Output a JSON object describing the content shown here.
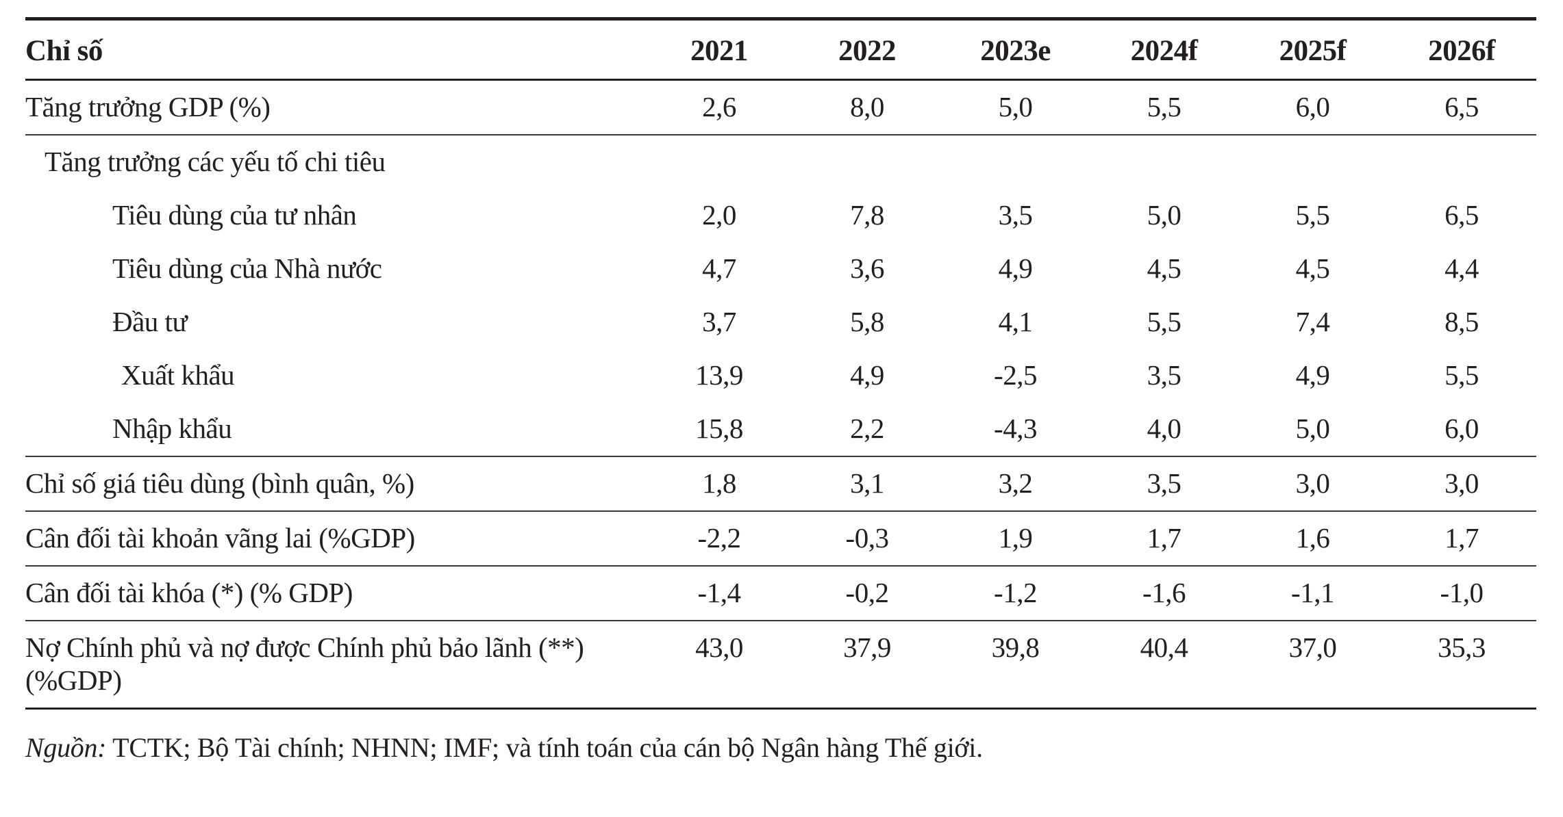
{
  "table": {
    "columns": [
      {
        "label": "Chỉ số"
      },
      {
        "label": "2021"
      },
      {
        "label": "2022"
      },
      {
        "label": "2023e"
      },
      {
        "label": "2024f"
      },
      {
        "label": "2025f"
      },
      {
        "label": "2026f"
      }
    ],
    "sections": [
      {
        "rows": [
          {
            "label": "Tăng trưởng GDP (%)",
            "indent": 0,
            "values": [
              "2,6",
              "8,0",
              "5,0",
              "5,5",
              "6,0",
              "6,5"
            ]
          }
        ]
      },
      {
        "rows": [
          {
            "label": "Tăng trưởng các yếu tố chi tiêu",
            "indent": 1,
            "values": [
              "",
              "",
              "",
              "",
              "",
              ""
            ]
          },
          {
            "label": "Tiêu dùng của tư nhân",
            "indent": 2,
            "values": [
              "2,0",
              "7,8",
              "3,5",
              "5,0",
              "5,5",
              "6,5"
            ]
          },
          {
            "label": "Tiêu dùng của Nhà nước",
            "indent": 2,
            "values": [
              "4,7",
              "3,6",
              "4,9",
              "4,5",
              "4,5",
              "4,4"
            ]
          },
          {
            "label": "Đầu tư",
            "indent": 2,
            "values": [
              "3,7",
              "5,8",
              "4,1",
              "5,5",
              "7,4",
              "8,5"
            ]
          },
          {
            "label": "Xuất khẩu",
            "indent": 3,
            "values": [
              "13,9",
              "4,9",
              "-2,5",
              "3,5",
              "4,9",
              "5,5"
            ]
          },
          {
            "label": "Nhập khẩu",
            "indent": 2,
            "values": [
              "15,8",
              "2,2",
              "-4,3",
              "4,0",
              "5,0",
              "6,0"
            ]
          }
        ]
      },
      {
        "rows": [
          {
            "label": "Chỉ số giá tiêu dùng (bình quân, %)",
            "indent": 0,
            "values": [
              "1,8",
              "3,1",
              "3,2",
              "3,5",
              "3,0",
              "3,0"
            ]
          }
        ]
      },
      {
        "rows": [
          {
            "label": "Cân đối tài khoản vãng lai (%GDP)",
            "indent": 0,
            "values": [
              "-2,2",
              "-0,3",
              "1,9",
              "1,7",
              "1,6",
              "1,7"
            ]
          }
        ]
      },
      {
        "rows": [
          {
            "label": "Cân đối tài khóa (*) (% GDP)",
            "indent": 0,
            "values": [
              "-1,4",
              "-0,2",
              "-1,2",
              "-1,6",
              "-1,1",
              "-1,0"
            ]
          }
        ]
      },
      {
        "rows": [
          {
            "label": "Nợ Chính phủ và nợ được Chính phủ bảo lãnh (**) (%GDP)",
            "indent": 0,
            "values": [
              "43,0",
              "37,9",
              "39,8",
              "40,4",
              "37,0",
              "35,3"
            ]
          }
        ]
      }
    ]
  },
  "footer": {
    "source_label": "Nguồn:",
    "source_text": " TCTK; Bộ Tài chính; NHNN; IMF; và tính toán của cán bộ Ngân hàng Thế giới."
  },
  "colors": {
    "text": "#231f20",
    "rule_heavy": "#231f20",
    "rule_light": "#3b3738",
    "background": "#ffffff"
  }
}
